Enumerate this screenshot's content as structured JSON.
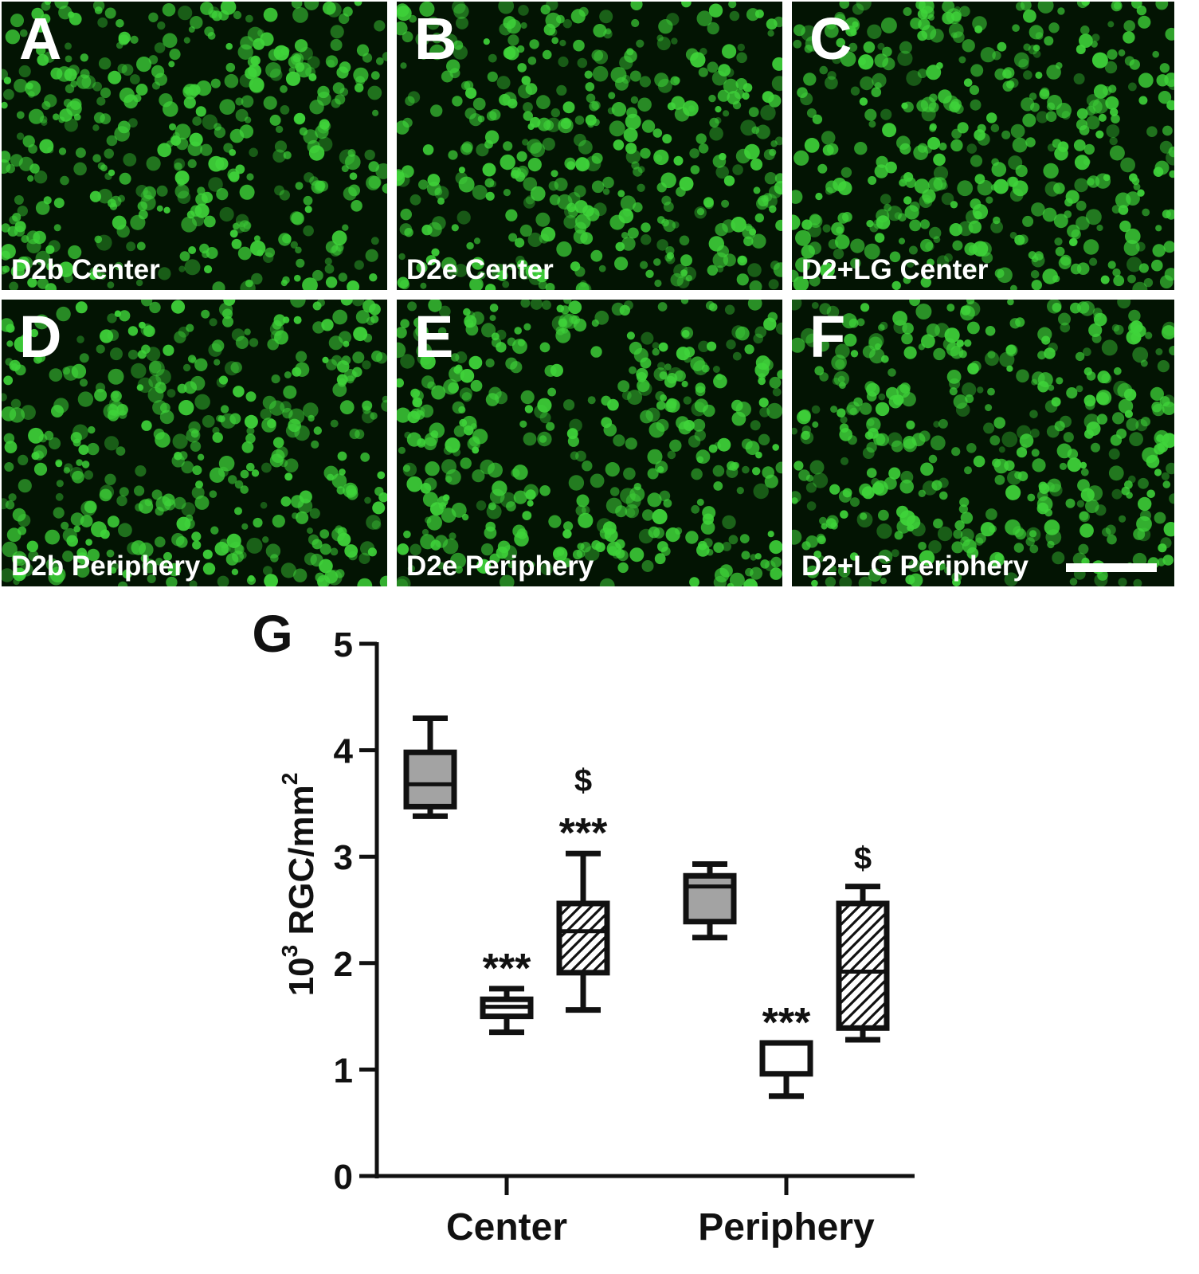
{
  "panels": [
    {
      "letter": "A",
      "label": "D2b Center"
    },
    {
      "letter": "B",
      "label": "D2e Center"
    },
    {
      "letter": "C",
      "label": "D2+LG Center"
    },
    {
      "letter": "D",
      "label": "D2b Periphery"
    },
    {
      "letter": "E",
      "label": "D2e Periphery"
    },
    {
      "letter": "F",
      "label": "D2+LG Periphery"
    }
  ],
  "colors": {
    "stain": "#3fd43a",
    "background": "#031403",
    "box_d2b": "#a3a3a3",
    "box_d2e": "#ffffff",
    "box_lg": "hatched"
  },
  "chart_data": {
    "type": "box",
    "panel_letter": "G",
    "ylabel_base": "10",
    "ylabel_sup": "3",
    "ylabel_unit": " RGC/mm",
    "ylabel_sup2": "2",
    "ylim": [
      0,
      5
    ],
    "yticks": [
      "0",
      "1",
      "2",
      "3",
      "4",
      "5"
    ],
    "categories": [
      "Center",
      "Periphery"
    ],
    "groups": [
      {
        "category": "Center",
        "boxes": [
          {
            "fill": "gray",
            "min": 3.38,
            "q1": 3.47,
            "median": 3.68,
            "q3": 3.98,
            "max": 4.3,
            "sig": []
          },
          {
            "fill": "white",
            "min": 1.35,
            "q1": 1.5,
            "median": 1.59,
            "q3": 1.66,
            "max": 1.76,
            "sig": [
              "***"
            ]
          },
          {
            "fill": "hatch",
            "min": 1.56,
            "q1": 1.91,
            "median": 2.3,
            "q3": 2.56,
            "max": 3.03,
            "sig": [
              "***",
              "$"
            ]
          }
        ]
      },
      {
        "category": "Periphery",
        "boxes": [
          {
            "fill": "gray",
            "min": 2.24,
            "q1": 2.39,
            "median": 2.72,
            "q3": 2.82,
            "max": 2.93,
            "sig": []
          },
          {
            "fill": "white",
            "min": 0.75,
            "q1": 0.96,
            "median": 1.25,
            "q3": 1.25,
            "max": 1.25,
            "sig": [
              "***"
            ]
          },
          {
            "fill": "hatch",
            "min": 1.28,
            "q1": 1.39,
            "median": 1.92,
            "q3": 2.56,
            "max": 2.72,
            "sig": [
              "$"
            ]
          }
        ]
      }
    ]
  }
}
